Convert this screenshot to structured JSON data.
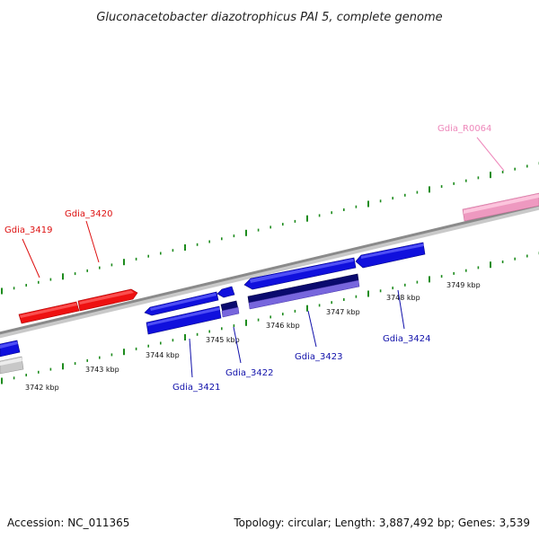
{
  "title": "Gluconacetobacter diazotrophicus PAI 5, complete genome",
  "footer": {
    "accession": "Accession: NC_011365",
    "summary": "Topology: circular; Length: 3,887,492 bp; Genes: 3,539"
  },
  "colors": {
    "backbone": "#8a8a8a",
    "forward_gene": "#ee1111",
    "reverse_gene": "#1010dd",
    "reverse_cds_dark": "#0a0a6e",
    "reverse_cds_light": "#7766dd",
    "rna_gene": "#ee99c0",
    "grey_feature": "#c8c8c8",
    "tick": "#1e8c1e",
    "forward_label": "#dd1111",
    "reverse_label": "#1111aa",
    "rna_label": "#ee88bb"
  },
  "scale_labels": [
    "3742 kbp",
    "3743 kbp",
    "3744 kbp",
    "3745 kbp",
    "3746 kbp",
    "3747 kbp",
    "3748 kbp",
    "3749 kbp"
  ],
  "gene_labels": {
    "forward": [
      "Gdia_3419",
      "Gdia_3420"
    ],
    "rna": [
      "Gdia_R0064"
    ],
    "reverse": [
      "Gdia_3421",
      "Gdia_3422",
      "Gdia_3423",
      "Gdia_3424"
    ]
  }
}
